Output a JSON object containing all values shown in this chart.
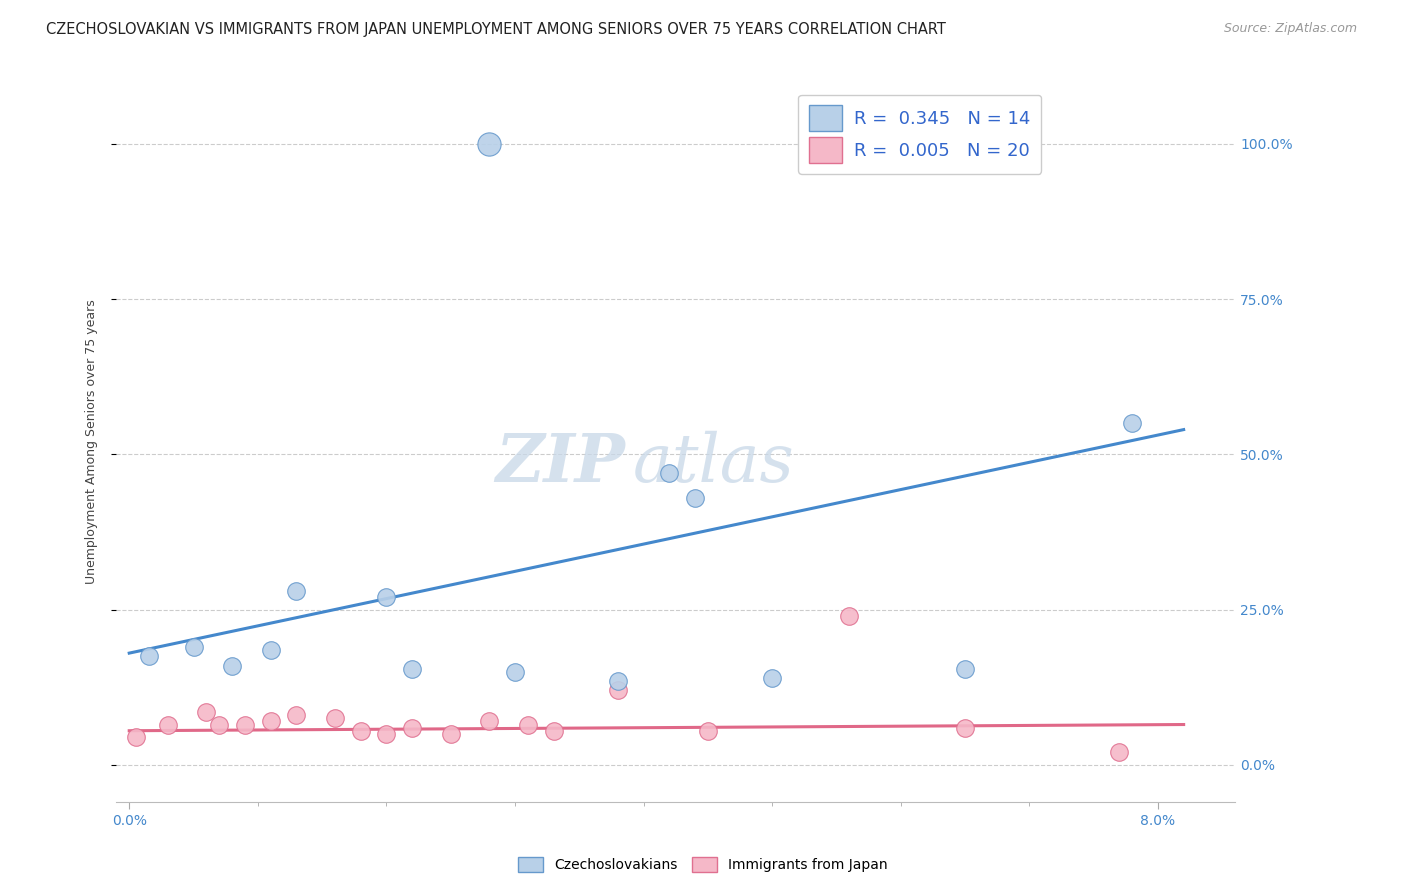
{
  "title": "CZECHOSLOVAKIAN VS IMMIGRANTS FROM JAPAN UNEMPLOYMENT AMONG SENIORS OVER 75 YEARS CORRELATION CHART",
  "source": "Source: ZipAtlas.com",
  "ylabel": "Unemployment Among Seniors over 75 years",
  "blue_color": "#b8d0e8",
  "blue_edge": "#6699cc",
  "pink_color": "#f5b8c8",
  "pink_edge": "#e07090",
  "blue_line_color": "#4488cc",
  "pink_line_color": "#e06888",
  "blue_scatter": [
    [
      0.0015,
      17.5
    ],
    [
      0.005,
      19.0
    ],
    [
      0.008,
      16.0
    ],
    [
      0.011,
      18.5
    ],
    [
      0.013,
      28.0
    ],
    [
      0.02,
      27.0
    ],
    [
      0.022,
      15.5
    ],
    [
      0.03,
      15.0
    ],
    [
      0.038,
      13.5
    ],
    [
      0.042,
      47.0
    ],
    [
      0.044,
      43.0
    ],
    [
      0.05,
      14.0
    ],
    [
      0.065,
      15.5
    ],
    [
      0.078,
      55.0
    ]
  ],
  "blue_outlier": [
    0.028,
    100.0
  ],
  "pink_scatter": [
    [
      0.0005,
      4.5
    ],
    [
      0.003,
      6.5
    ],
    [
      0.006,
      8.5
    ],
    [
      0.007,
      6.5
    ],
    [
      0.009,
      6.5
    ],
    [
      0.011,
      7.0
    ],
    [
      0.013,
      8.0
    ],
    [
      0.016,
      7.5
    ],
    [
      0.018,
      5.5
    ],
    [
      0.02,
      5.0
    ],
    [
      0.022,
      6.0
    ],
    [
      0.025,
      5.0
    ],
    [
      0.028,
      7.0
    ],
    [
      0.031,
      6.5
    ],
    [
      0.033,
      5.5
    ],
    [
      0.038,
      12.0
    ],
    [
      0.045,
      5.5
    ],
    [
      0.056,
      24.0
    ],
    [
      0.065,
      6.0
    ],
    [
      0.077,
      2.0
    ]
  ],
  "blue_line_x": [
    0.0,
    0.082
  ],
  "blue_line_y": [
    18.0,
    54.0
  ],
  "pink_line_x": [
    0.0,
    0.082
  ],
  "pink_line_y": [
    5.5,
    6.5
  ],
  "xlim": [
    -0.001,
    0.086
  ],
  "ylim": [
    -6.0,
    110.0
  ],
  "yticks": [
    0.0,
    25.0,
    50.0,
    75.0,
    100.0
  ],
  "ytick_labels": [
    "0.0%",
    "25.0%",
    "50.0%",
    "75.0%",
    "100.0%"
  ],
  "xtick_left": 0.0,
  "xtick_right": 0.08,
  "xtick_label_left": "0.0%",
  "xtick_label_right": "8.0%",
  "figsize": [
    14.06,
    8.92
  ],
  "dpi": 100,
  "bg": "#ffffff",
  "grid_color": "#cccccc",
  "title_fontsize": 10.5,
  "source_fontsize": 9,
  "axis_label_fontsize": 9,
  "tick_fontsize": 10,
  "legend_fontsize": 13,
  "watermark_color": "#c8d8e8",
  "scatter_size": 160,
  "outlier_size": 280,
  "legend_text_color": "#3366cc"
}
